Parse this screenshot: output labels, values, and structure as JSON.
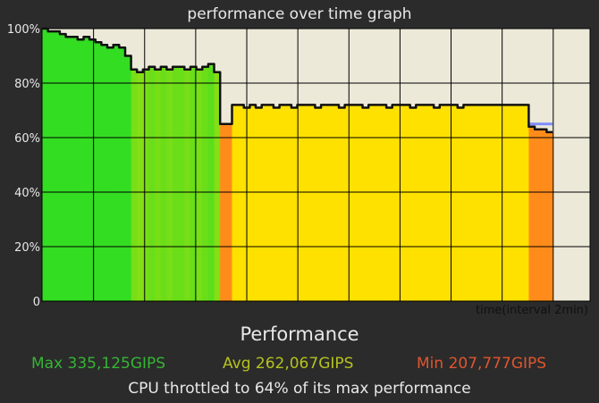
{
  "chart_data": {
    "type": "area",
    "title": "performance over time graph",
    "xlabel": "time(interval 2min)",
    "ylabel": "",
    "ylim": [
      0,
      100
    ],
    "yticks": [
      "0",
      "20%",
      "40%",
      "60%",
      "80%",
      "100%"
    ],
    "grid": true,
    "series": [
      {
        "values": [
          100,
          99,
          99,
          98,
          97,
          97,
          96,
          97,
          96,
          95,
          94,
          93,
          94,
          93,
          90,
          85,
          84,
          85,
          86,
          85,
          86,
          85,
          86,
          86,
          85,
          86,
          85,
          86,
          87,
          84,
          65,
          65,
          72,
          72,
          71,
          72,
          71,
          72,
          72,
          71,
          72,
          72,
          71,
          72,
          72,
          72,
          71,
          72,
          72,
          72,
          71,
          72,
          72,
          72,
          71,
          72,
          72,
          72,
          71,
          72,
          72,
          72,
          71,
          72,
          72,
          72,
          71,
          72,
          72,
          72,
          71,
          72,
          72,
          72,
          72,
          72,
          72,
          72,
          72,
          72,
          72,
          72,
          64,
          63,
          63,
          62
        ]
      }
    ],
    "reference_line": {
      "value": 64,
      "color": "#7f8cff"
    }
  },
  "colors": {
    "background": "#2b2b2b",
    "plot_background": "#ece9d9",
    "high": "#33dd22",
    "mid": "#ffe100",
    "low": "#ff8c1a",
    "line": "#111111"
  },
  "summary": {
    "heading": "Performance",
    "max_text": "Max 335,125GIPS",
    "avg_text": "Avg 262,067GIPS",
    "min_text": "Min 207,777GIPS",
    "throttle_text": "CPU throttled to 64% of its max performance"
  }
}
